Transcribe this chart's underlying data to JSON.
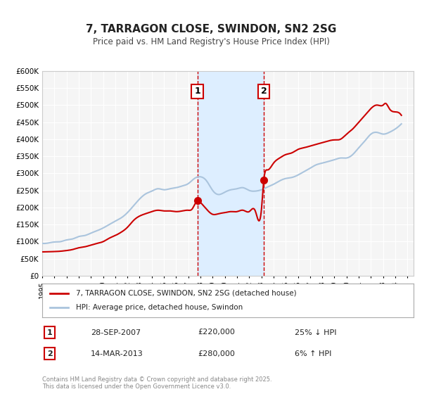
{
  "title": "7, TARRAGON CLOSE, SWINDON, SN2 2SG",
  "subtitle": "Price paid vs. HM Land Registry's House Price Index (HPI)",
  "xlabel": "",
  "ylabel": "",
  "ylim": [
    0,
    600000
  ],
  "yticks": [
    0,
    50000,
    100000,
    150000,
    200000,
    250000,
    300000,
    350000,
    400000,
    450000,
    500000,
    550000,
    600000
  ],
  "ytick_labels": [
    "£0",
    "£50K",
    "£100K",
    "£150K",
    "£200K",
    "£250K",
    "£300K",
    "£350K",
    "£400K",
    "£450K",
    "£500K",
    "£550K",
    "£600K"
  ],
  "xlim_start": 1995.0,
  "xlim_end": 2025.5,
  "background_color": "#ffffff",
  "plot_bg_color": "#f5f5f5",
  "grid_color": "#ffffff",
  "hpi_line_color": "#aac4dd",
  "price_line_color": "#cc0000",
  "shaded_region_color": "#ddeeff",
  "vline_color": "#cc0000",
  "marker1_date": 2007.74,
  "marker2_date": 2013.2,
  "marker1_price": 220000,
  "marker2_price": 280000,
  "annotation1_label": "1",
  "annotation2_label": "2",
  "legend_label1": "7, TARRAGON CLOSE, SWINDON, SN2 2SG (detached house)",
  "legend_label2": "HPI: Average price, detached house, Swindon",
  "table_row1": [
    "1",
    "28-SEP-2007",
    "£220,000",
    "25% ↓ HPI"
  ],
  "table_row2": [
    "2",
    "14-MAR-2013",
    "£280,000",
    "6% ↑ HPI"
  ],
  "footnote": "Contains HM Land Registry data © Crown copyright and database right 2025.\nThis data is licensed under the Open Government Licence v3.0.",
  "hpi_data": {
    "years": [
      1995,
      1995.5,
      1996,
      1996.5,
      1997,
      1997.5,
      1998,
      1998.5,
      1999,
      1999.5,
      2000,
      2000.5,
      2001,
      2001.5,
      2002,
      2002.5,
      2003,
      2003.5,
      2004,
      2004.5,
      2005,
      2005.5,
      2006,
      2006.5,
      2007,
      2007.5,
      2008,
      2008.5,
      2009,
      2009.5,
      2010,
      2010.5,
      2011,
      2011.5,
      2012,
      2012.5,
      2013,
      2013.5,
      2014,
      2014.5,
      2015,
      2015.5,
      2016,
      2016.5,
      2017,
      2017.5,
      2018,
      2018.5,
      2019,
      2019.5,
      2020,
      2020.5,
      2021,
      2021.5,
      2022,
      2022.5,
      2023,
      2023.5,
      2024,
      2024.5
    ],
    "values": [
      95000,
      96000,
      99000,
      100000,
      105000,
      108000,
      115000,
      118000,
      125000,
      132000,
      140000,
      150000,
      160000,
      170000,
      185000,
      205000,
      225000,
      240000,
      248000,
      255000,
      252000,
      255000,
      258000,
      263000,
      270000,
      285000,
      290000,
      278000,
      250000,
      238000,
      245000,
      252000,
      255000,
      258000,
      250000,
      248000,
      252000,
      260000,
      268000,
      278000,
      285000,
      288000,
      295000,
      305000,
      315000,
      325000,
      330000,
      335000,
      340000,
      345000,
      345000,
      355000,
      375000,
      395000,
      415000,
      420000,
      415000,
      420000,
      430000,
      445000
    ],
    "smooth": true
  },
  "price_data": {
    "years": [
      1995,
      1995.5,
      1996,
      1996.5,
      1997,
      1997.5,
      1998,
      1998.5,
      1999,
      1999.5,
      2000,
      2000.5,
      2001,
      2001.5,
      2002,
      2002.5,
      2003,
      2003.5,
      2004,
      2004.5,
      2005,
      2005.5,
      2006,
      2006.5,
      2007,
      2007.3,
      2007.74,
      2008,
      2008.5,
      2009,
      2009.5,
      2010,
      2010.5,
      2011,
      2011.5,
      2012,
      2012.5,
      2013.0,
      2013.2,
      2013.5,
      2014,
      2014.5,
      2015,
      2015.5,
      2016,
      2016.5,
      2017,
      2017.5,
      2018,
      2018.5,
      2019,
      2019.5,
      2020,
      2020.5,
      2021,
      2021.5,
      2022,
      2022.5,
      2023,
      2023.2,
      2023.5,
      2024,
      2024.5
    ],
    "values": [
      70000,
      70500,
      71000,
      72000,
      74000,
      77000,
      82000,
      85000,
      90000,
      95000,
      100000,
      110000,
      118000,
      128000,
      142000,
      162000,
      175000,
      182000,
      188000,
      192000,
      190000,
      190000,
      188000,
      190000,
      192000,
      195000,
      220000,
      215000,
      195000,
      180000,
      182000,
      185000,
      188000,
      188000,
      192000,
      188000,
      190000,
      192000,
      280000,
      310000,
      330000,
      345000,
      355000,
      360000,
      370000,
      375000,
      380000,
      385000,
      390000,
      395000,
      398000,
      400000,
      415000,
      430000,
      450000,
      470000,
      490000,
      500000,
      500000,
      505000,
      490000,
      480000,
      470000
    ]
  }
}
